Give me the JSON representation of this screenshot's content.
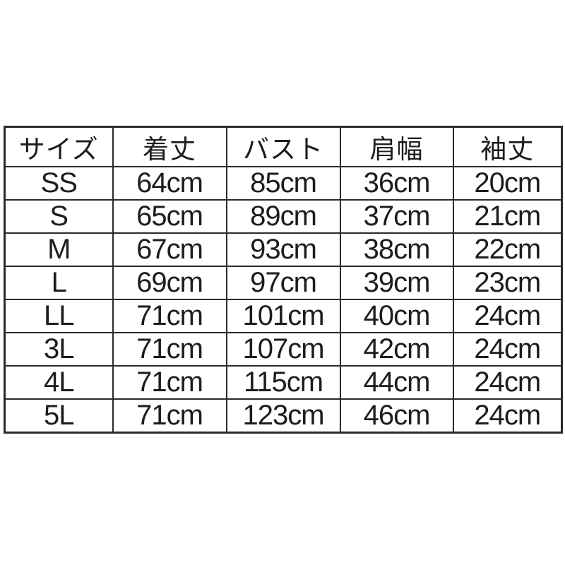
{
  "chart_data": {
    "type": "table",
    "title": "",
    "columns": [
      "サイズ",
      "着丈",
      "バスト",
      "肩幅",
      "袖丈"
    ],
    "rows": [
      [
        "SS",
        "64cm",
        "85cm",
        "36cm",
        "20cm"
      ],
      [
        "S",
        "65cm",
        "89cm",
        "37cm",
        "21cm"
      ],
      [
        "M",
        "67cm",
        "93cm",
        "38cm",
        "22cm"
      ],
      [
        "L",
        "69cm",
        "97cm",
        "39cm",
        "23cm"
      ],
      [
        "LL",
        "71cm",
        "101cm",
        "40cm",
        "24cm"
      ],
      [
        "3L",
        "71cm",
        "107cm",
        "42cm",
        "24cm"
      ],
      [
        "4L",
        "71cm",
        "115cm",
        "44cm",
        "24cm"
      ],
      [
        "5L",
        "71cm",
        "123cm",
        "46cm",
        "24cm"
      ]
    ]
  },
  "colors": {
    "background": "#ffffff",
    "border": "#2b2b2b",
    "text": "#1d1d1d"
  }
}
